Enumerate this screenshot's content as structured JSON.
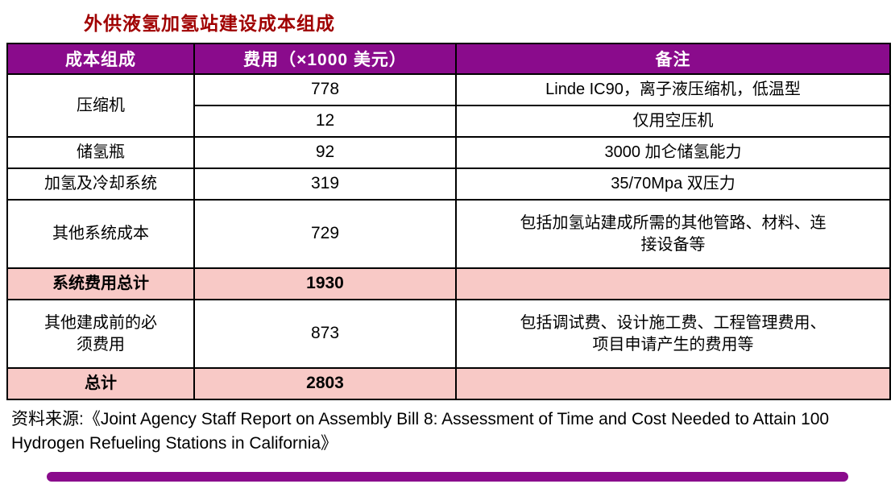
{
  "chart_data": {
    "type": "table",
    "title": "外供液氢加氢站建设成本组成",
    "columns": [
      "成本组成",
      "费用（×1000 美元）",
      "备注"
    ],
    "rows": [
      [
        "压缩机",
        778,
        "Linde IC90，离子液压缩机，低温型"
      ],
      [
        "压缩机",
        12,
        "仅用空压机"
      ],
      [
        "储氢瓶",
        92,
        "3000 加仑储氢能力"
      ],
      [
        "加氢及冷却系统",
        319,
        "35/70Mpa 双压力"
      ],
      [
        "其他系统成本",
        729,
        "包括加氢站建成所需的其他管路、材料、连接设备等"
      ],
      [
        "系统费用总计",
        1930,
        ""
      ],
      [
        "其他建成前的必须费用",
        873,
        "包括调试费、设计施工费、工程管理费用、项目申请产生的费用等"
      ],
      [
        "总计",
        2803,
        ""
      ]
    ],
    "highlight_rows": [
      5,
      7
    ],
    "source": "资料来源:《Joint Agency Staff Report on Assembly Bill 8: Assessment of Time and Cost Needed to Attain 100 Hydrogen Refueling Stations in California》"
  },
  "colors": {
    "header_bg": "#8A0B8C",
    "header_text": "#FFFFFF",
    "highlight_bg": "#F8C9C6",
    "title_text": "#A00000",
    "accent_bar": "#8A0B8C",
    "border": "#000000"
  }
}
